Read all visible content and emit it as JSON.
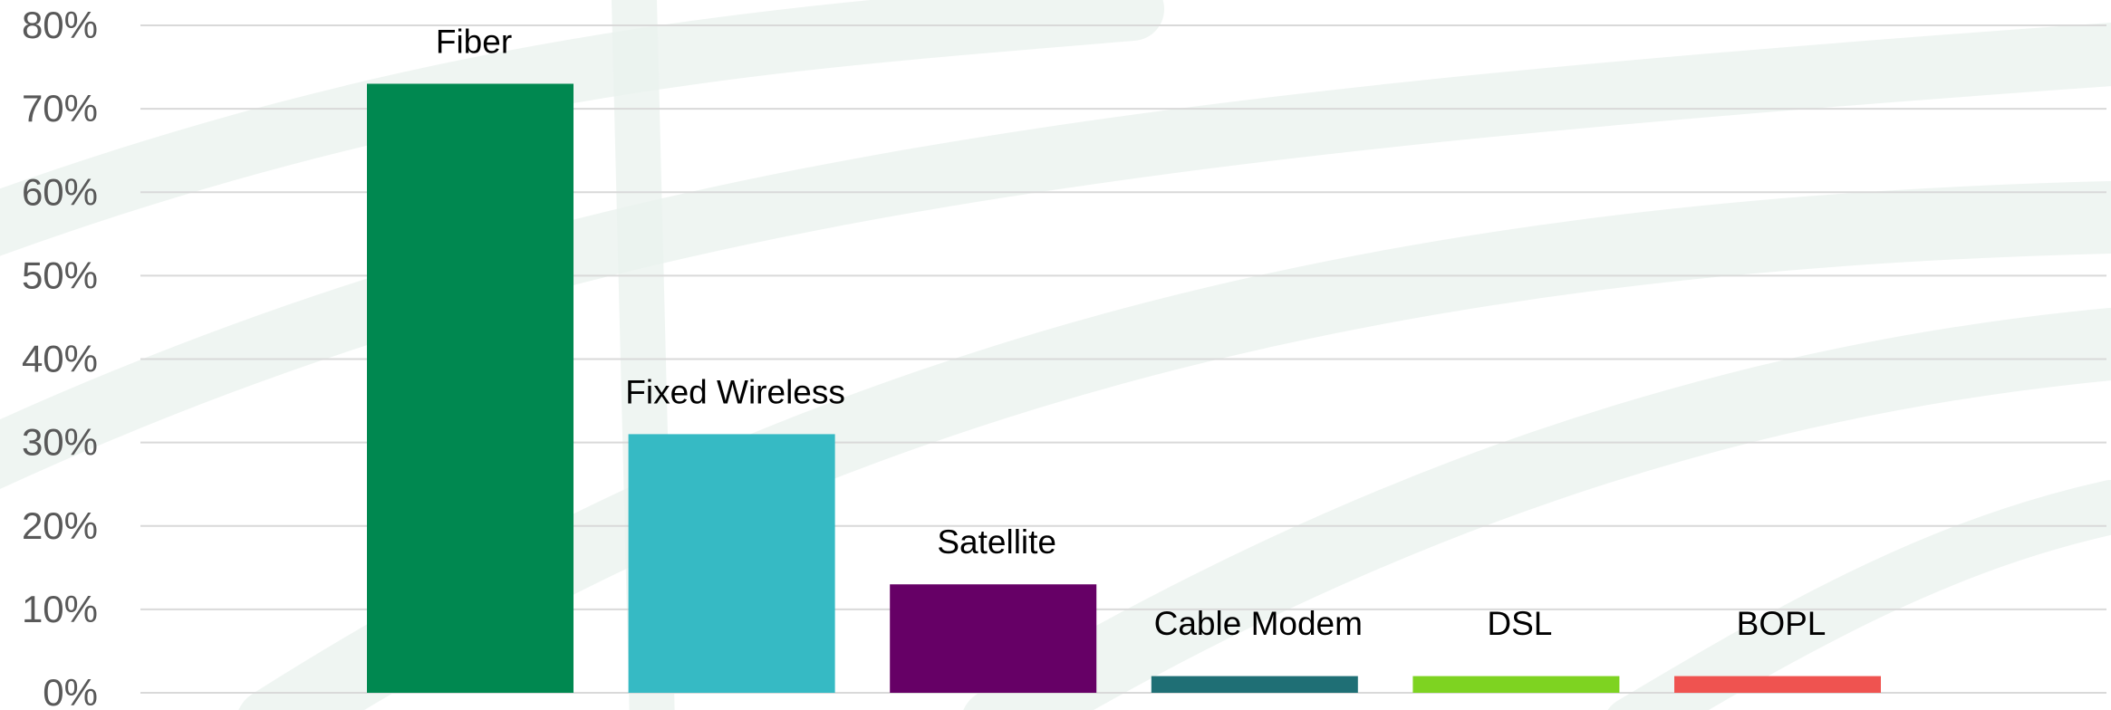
{
  "chart_data": {
    "type": "bar",
    "categories": [
      "Fiber",
      "Fixed Wireless",
      "Satellite",
      "Cable Modem",
      "DSL",
      "BOPL"
    ],
    "values": [
      73,
      31,
      13,
      2,
      2,
      2
    ],
    "data_labels": [
      "Fiber",
      "Fixed Wireless",
      "Satellite",
      "Cable Modem",
      "DSL",
      "BOPL"
    ],
    "colors": [
      "#008850",
      "#36bac4",
      "#660066",
      "#1f6f75",
      "#7ed321",
      "#ef5350"
    ],
    "y_ticks": [
      "0%",
      "10%",
      "20%",
      "30%",
      "40%",
      "50%",
      "60%",
      "70%",
      "80%"
    ],
    "ylim": [
      0,
      80
    ],
    "y_unit": "%",
    "grid": true,
    "legend": false,
    "title": "",
    "xlabel": "",
    "ylabel": ""
  }
}
